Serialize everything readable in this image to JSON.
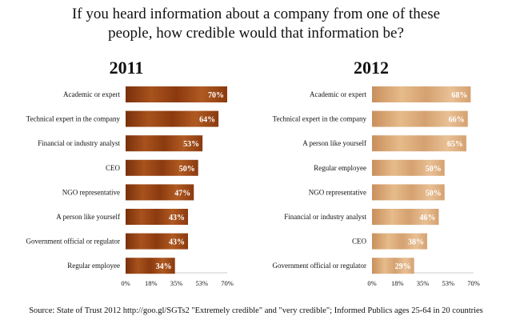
{
  "title_line1": "If you heard information about a company from one of these",
  "title_line2": "people, how credible would that information be?",
  "source": "Source: State of Trust 2012 http://goo.gl/SGTs2 \"Extremely credible\" and \"very credible\"; Informed Publics ages 25-64 in 20 countries",
  "colors": {
    "bar_2011": "#8b3a0f",
    "bar_2011_light": "#a8521d",
    "bar_2012": "#d5a170",
    "bar_2012_light": "#e6bb8a"
  },
  "chart_data": [
    {
      "type": "bar",
      "orientation": "horizontal",
      "title": "2011",
      "categories": [
        "Academic or expert",
        "Technical expert in the company",
        "Financial or industry analyst",
        "CEO",
        "NGO representative",
        "A person like yourself",
        "Government official or regulator",
        "Regular employee"
      ],
      "values": [
        70,
        64,
        53,
        50,
        47,
        43,
        43,
        34
      ],
      "value_labels": [
        "70%",
        "64%",
        "53%",
        "50%",
        "47%",
        "43%",
        "43%",
        "34%"
      ],
      "xticks": [
        "0%",
        "18%",
        "35%",
        "53%",
        "70%"
      ],
      "xlim": [
        0,
        70
      ]
    },
    {
      "type": "bar",
      "orientation": "horizontal",
      "title": "2012",
      "categories": [
        "Academic or expert",
        "Technical expert in the company",
        "A person like yourself",
        "Regular employee",
        "NGO representative",
        "Financial or industry analyst",
        "CEO",
        "Government official or regulator"
      ],
      "values": [
        68,
        66,
        65,
        50,
        50,
        46,
        38,
        29
      ],
      "value_labels": [
        "68%",
        "66%",
        "65%",
        "50%",
        "50%",
        "46%",
        "38%",
        "29%"
      ],
      "xticks": [
        "0%",
        "18%",
        "35%",
        "53%",
        "70%"
      ],
      "xlim": [
        0,
        70
      ]
    }
  ]
}
